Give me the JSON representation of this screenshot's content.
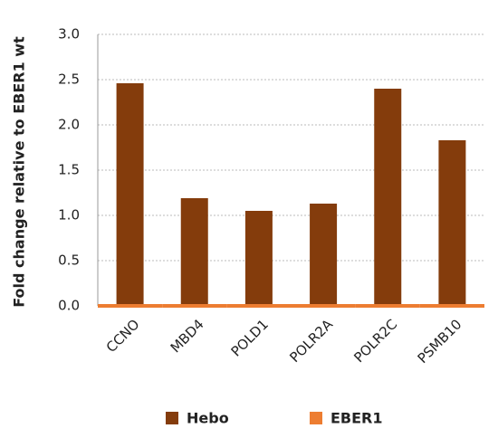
{
  "chart_data": {
    "type": "bar",
    "y_label": "Fold change relative to EBER1 wt",
    "categories": [
      "CCNO",
      "MBD4",
      "POLD1",
      "POLR2A",
      "POLR2C",
      "PSMB10"
    ],
    "series": [
      {
        "name": "Hebo",
        "color": "#843c0c",
        "values": [
          2.46,
          1.19,
          1.05,
          1.13,
          2.4,
          1.83
        ]
      },
      {
        "name": "EBER1",
        "color": "#ed7d31",
        "values": [
          0,
          0,
          0,
          0,
          0,
          0
        ]
      }
    ],
    "ylim": [
      0,
      3
    ],
    "yticks": [
      {
        "value": 0,
        "label": "0.0"
      },
      {
        "value": 0.5,
        "label": "0.5"
      },
      {
        "value": 1,
        "label": "1.0"
      },
      {
        "value": 1.5,
        "label": "1.5"
      },
      {
        "value": 2,
        "label": "2.0"
      },
      {
        "value": 2.5,
        "label": "2.5"
      },
      {
        "value": 3,
        "label": "3.0"
      }
    ],
    "grid": true
  }
}
